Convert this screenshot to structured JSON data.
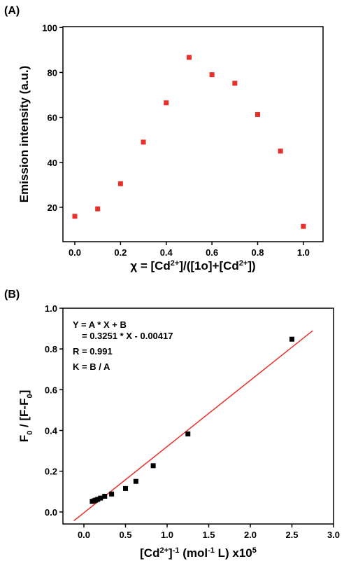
{
  "chart_data": [
    {
      "type": "scatter",
      "panel": "(A)",
      "ylabel_parts": [
        {
          "text": "Emission intensity (a.u.)"
        }
      ],
      "xlabel_parts": [
        {
          "text": "χ = [Cd"
        },
        {
          "text": "2+",
          "sup": true
        },
        {
          "text": "]/([1o]+[Cd"
        },
        {
          "text": "2+",
          "sup": true
        },
        {
          "text": "])"
        }
      ],
      "x": [
        0.0,
        0.1,
        0.2,
        0.3,
        0.4,
        0.5,
        0.6,
        0.7,
        0.8,
        0.9,
        1.0
      ],
      "values": [
        16,
        19.3,
        30.5,
        49,
        66.5,
        86.7,
        79,
        75.2,
        61.3,
        45,
        11.5
      ],
      "color": "#e8302a",
      "xlim": [
        -0.052,
        1.086
      ],
      "ylim": [
        4.7,
        100.4
      ],
      "xticks": [
        {
          "value": 0,
          "label": "0.0"
        },
        {
          "value": 0.2,
          "label": "0.2"
        },
        {
          "value": 0.4,
          "label": "0.4"
        },
        {
          "value": 0.6,
          "label": "0.6"
        },
        {
          "value": 0.8,
          "label": "0.8"
        },
        {
          "value": 1,
          "label": "1.0"
        }
      ],
      "yticks": [
        20,
        40,
        60,
        80,
        100
      ]
    },
    {
      "type": "scatter",
      "panel": "(B)",
      "ylabel_parts": [
        {
          "text": "F"
        },
        {
          "text": "0",
          "sub": true
        },
        {
          "text": " / [F-F"
        },
        {
          "text": "0",
          "sub": true
        },
        {
          "text": "]"
        }
      ],
      "xlabel_parts": [
        {
          "text": "[Cd"
        },
        {
          "text": "2+",
          "sup": true
        },
        {
          "text": "]"
        },
        {
          "text": "-1",
          "sup": true
        },
        {
          "text": " (mol"
        },
        {
          "text": "-1",
          "sup": true
        },
        {
          "text": " L) x10"
        },
        {
          "text": "5",
          "sup": true
        }
      ],
      "x": [
        0.1,
        0.125,
        0.143,
        0.167,
        0.2,
        0.25,
        0.333,
        0.5,
        0.625,
        0.833,
        1.25,
        2.5
      ],
      "values": [
        0.052,
        0.055,
        0.058,
        0.062,
        0.068,
        0.077,
        0.088,
        0.115,
        0.15,
        0.227,
        0.383,
        0.848
      ],
      "color": "#000000",
      "fit": {
        "slope": 0.3251,
        "intercept": -0.00417,
        "x": [
          -0.12,
          2.75
        ],
        "color": "#e8302a"
      },
      "annotations": [
        "Y = A * X  + B",
        "= 0.3251 * X - 0.00417",
        "R = 0.991",
        "K = B / A"
      ],
      "xlim": [
        -0.252,
        3.0
      ],
      "ylim": [
        -0.059,
        1.0
      ],
      "xticks": [
        {
          "value": 0,
          "label": "0.0"
        },
        {
          "value": 0.5,
          "label": "0.5"
        },
        {
          "value": 1,
          "label": "1.0"
        },
        {
          "value": 1.5,
          "label": "1.5"
        },
        {
          "value": 2,
          "label": "2.0"
        },
        {
          "value": 2.5,
          "label": "2.5"
        },
        {
          "value": 3,
          "label": "3.0"
        }
      ],
      "yticks": [
        {
          "value": 0,
          "label": "0.0"
        },
        {
          "value": 0.2,
          "label": "0.2"
        },
        {
          "value": 0.4,
          "label": "0.4"
        },
        {
          "value": 0.6,
          "label": "0.6"
        },
        {
          "value": 0.8,
          "label": "0.8"
        },
        {
          "value": 1,
          "label": "1.0"
        }
      ]
    }
  ]
}
